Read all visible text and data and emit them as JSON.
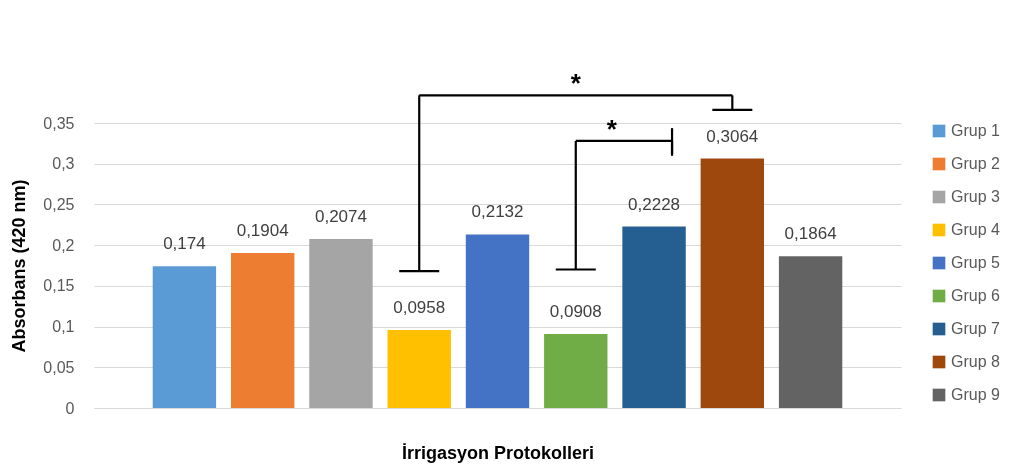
{
  "chart_data": {
    "type": "bar",
    "xlabel": "İrrigasyon Protokolleri",
    "ylabel": "Absorbans (420 nm)",
    "categories": [
      null
    ],
    "series": [
      {
        "name": "Grup 1",
        "color": "#5b9bd5",
        "values": [
          0.174
        ],
        "value_labels": [
          "0,174"
        ]
      },
      {
        "name": "Grup 2",
        "color": "#ed7d31",
        "values": [
          0.1904
        ],
        "value_labels": [
          "0,1904"
        ]
      },
      {
        "name": "Grup 3",
        "color": "#a5a5a5",
        "values": [
          0.2074
        ],
        "value_labels": [
          "0,2074"
        ]
      },
      {
        "name": "Grup 4",
        "color": "#ffc000",
        "values": [
          0.0958
        ],
        "value_labels": [
          "0,0958"
        ]
      },
      {
        "name": "Grup 5",
        "color": "#4472c4",
        "values": [
          0.2132
        ],
        "value_labels": [
          "0,2132"
        ]
      },
      {
        "name": "Grup 6",
        "color": "#70ad47",
        "values": [
          0.0908
        ],
        "value_labels": [
          "0,0908"
        ]
      },
      {
        "name": "Grup 7",
        "color": "#255e91",
        "values": [
          0.2228
        ],
        "value_labels": [
          "0,2228"
        ]
      },
      {
        "name": "Grup 8",
        "color": "#9e480e",
        "values": [
          0.3064
        ],
        "value_labels": [
          "0,3064"
        ]
      },
      {
        "name": "Grup 9",
        "color": "#636363",
        "values": [
          0.1864
        ],
        "value_labels": [
          "0,1864"
        ]
      }
    ],
    "ylim": [
      0,
      0.35
    ],
    "yticks": [
      0,
      {
        "value": 0.05,
        "label": "0,05"
      },
      {
        "value": 0.1,
        "label": "0,1"
      },
      {
        "value": 0.15,
        "label": "0,15"
      },
      {
        "value": 0.2,
        "label": "0,2"
      },
      {
        "value": 0.25,
        "label": "0,25"
      },
      {
        "value": 0.3,
        "label": "0,3"
      },
      {
        "value": 0.35,
        "label": "0,35"
      }
    ],
    "grid": "y",
    "legend": "right",
    "annotations": [
      "*",
      "*"
    ]
  }
}
